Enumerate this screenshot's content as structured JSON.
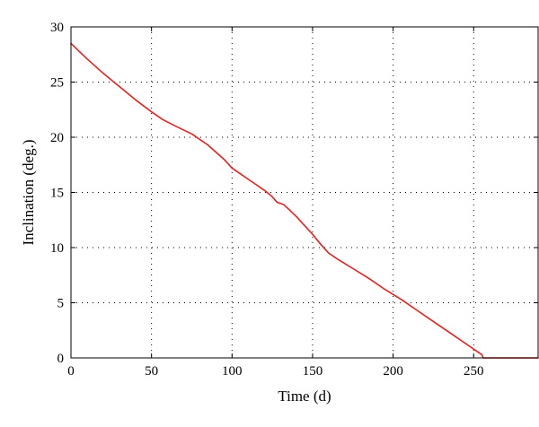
{
  "chart_data": {
    "type": "line",
    "title": "",
    "xlabel": "Time (d)",
    "ylabel": "Inclination (deg.)",
    "xlim": [
      0,
      290
    ],
    "ylim": [
      0,
      30
    ],
    "x_ticks": [
      0,
      50,
      100,
      150,
      200,
      250
    ],
    "y_ticks": [
      0,
      5,
      10,
      15,
      20,
      25,
      30
    ],
    "grid": true,
    "legend": "none",
    "series": [
      {
        "color": "#e8211e",
        "x": [
          0,
          10,
          20,
          30,
          40,
          50,
          57,
          65,
          75,
          85,
          95,
          100,
          105,
          110,
          115,
          120,
          125,
          128,
          132,
          135,
          140,
          145,
          150,
          155,
          160,
          165,
          175,
          185,
          195,
          205,
          215,
          225,
          235,
          245,
          255,
          256,
          270,
          290
        ],
        "y": [
          28.5,
          27.1,
          25.8,
          24.6,
          23.4,
          22.3,
          21.6,
          21.0,
          20.3,
          19.3,
          18.0,
          17.2,
          16.7,
          16.2,
          15.7,
          15.2,
          14.6,
          14.1,
          13.9,
          13.5,
          12.8,
          12.0,
          11.2,
          10.3,
          9.5,
          9.0,
          8.1,
          7.2,
          6.2,
          5.3,
          4.3,
          3.3,
          2.3,
          1.3,
          0.3,
          0.0,
          0.0,
          0.0
        ]
      }
    ]
  }
}
